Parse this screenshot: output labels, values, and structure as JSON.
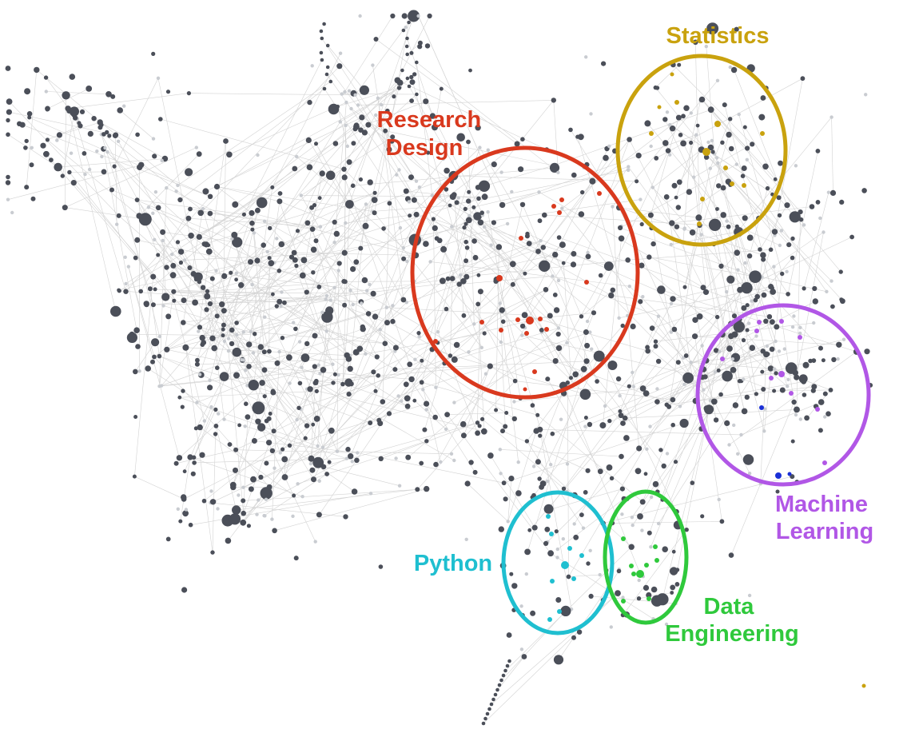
{
  "clusters": [
    {
      "key": "research_design",
      "label_lines": [
        "Research",
        "Design"
      ],
      "color": "#d9391e"
    },
    {
      "key": "statistics",
      "label_lines": [
        "Statistics"
      ],
      "color": "#c9a20e"
    },
    {
      "key": "machine_learning",
      "label_lines": [
        "Machine",
        "Learning"
      ],
      "color": "#b157e6"
    },
    {
      "key": "python",
      "label_lines": [
        "Python"
      ],
      "color": "#1fbfd0"
    },
    {
      "key": "data_engineering",
      "label_lines": [
        "Data",
        "Engineering"
      ],
      "color": "#2fc93c"
    }
  ],
  "node_colors": {
    "default": "#4b4f59",
    "light": "#c9ccd1",
    "edge": "#d3d3d3",
    "highlight_blue": "#1a2fd6"
  }
}
